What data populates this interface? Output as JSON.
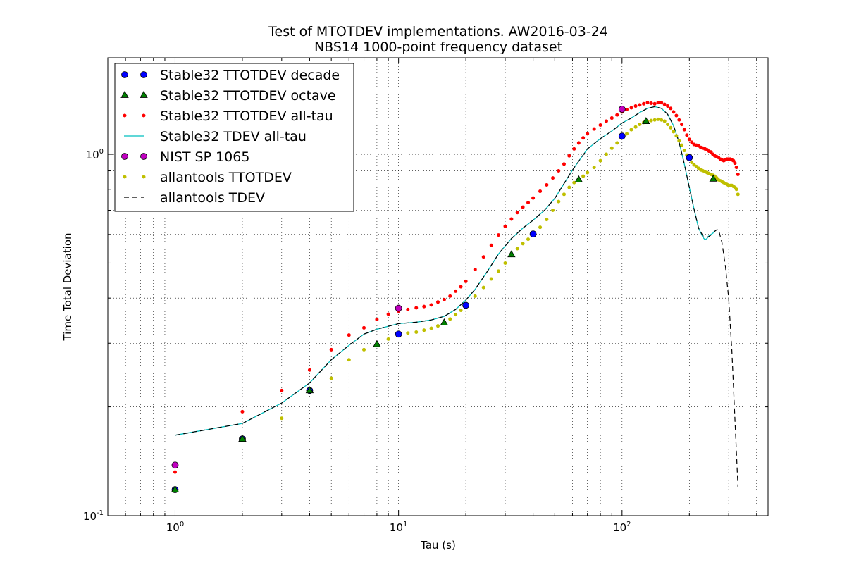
{
  "chart_data": {
    "type": "scatter",
    "title": "Test of MTOTDEV implementations. AW2016-03-24",
    "subtitle": "NBS14 1000-point frequency dataset",
    "xlabel": "Tau (s)",
    "ylabel": "Time Total Deviation",
    "xscale": "log",
    "yscale": "log",
    "xlim": [
      0.5,
      450
    ],
    "ylim": [
      0.1,
      1.85
    ],
    "grid": true,
    "legend_position": "top-left",
    "x_tick_labels": [
      {
        "value": 1,
        "base": "10",
        "exp": "0"
      },
      {
        "value": 10,
        "base": "10",
        "exp": "1"
      },
      {
        "value": 100,
        "base": "10",
        "exp": "2"
      }
    ],
    "y_tick_labels": [
      {
        "value": 0.1,
        "base": "10",
        "exp": "-1"
      },
      {
        "value": 1,
        "base": "10",
        "exp": "0"
      }
    ],
    "series": [
      {
        "name": "Stable32 TTOTDEV decade",
        "marker": "circle",
        "color": "#0000ff",
        "size": 4.5,
        "x": [
          1,
          2,
          4,
          10,
          20,
          40,
          100,
          200
        ],
        "y": [
          0.118,
          0.163,
          0.222,
          0.318,
          0.382,
          0.602,
          1.123,
          0.979
        ]
      },
      {
        "name": "Stable32 TTOTDEV octave",
        "marker": "triangle",
        "color": "#007f00",
        "size": 4.5,
        "x": [
          1,
          2,
          4,
          8,
          16,
          32,
          64,
          128,
          256
        ],
        "y": [
          0.118,
          0.163,
          0.222,
          0.298,
          0.342,
          0.528,
          0.851,
          1.234,
          0.855
        ]
      },
      {
        "name": "Stable32 TTOTDEV all-tau",
        "marker": "dot",
        "color": "#ff0000",
        "size": 2.5,
        "x": [
          1,
          2,
          3,
          4,
          5,
          6,
          7,
          8,
          9,
          10,
          11,
          12,
          13,
          14,
          15,
          16,
          17,
          18,
          19,
          20,
          22,
          24,
          26,
          28,
          30,
          32,
          34,
          36,
          38,
          40,
          43,
          46,
          49,
          52,
          55,
          58,
          61,
          64,
          67,
          70,
          75,
          80,
          85,
          90,
          95,
          100,
          105,
          110,
          115,
          120,
          125,
          130,
          135,
          140,
          145,
          150,
          155,
          160,
          165,
          170,
          175,
          180,
          185,
          190,
          195,
          200,
          205,
          210,
          215,
          220,
          225,
          230,
          235,
          240,
          245,
          250,
          255,
          260,
          265,
          270,
          275,
          280,
          285,
          290,
          295,
          300,
          305,
          310,
          315,
          320,
          325,
          330
        ],
        "y": [
          0.132,
          0.194,
          0.222,
          0.253,
          0.288,
          0.316,
          0.331,
          0.349,
          0.361,
          0.368,
          0.372,
          0.376,
          0.379,
          0.383,
          0.39,
          0.396,
          0.405,
          0.418,
          0.43,
          0.445,
          0.48,
          0.52,
          0.56,
          0.598,
          0.632,
          0.662,
          0.69,
          0.714,
          0.735,
          0.757,
          0.79,
          0.823,
          0.86,
          0.9,
          0.94,
          0.99,
          1.035,
          1.075,
          1.11,
          1.14,
          1.175,
          1.205,
          1.235,
          1.26,
          1.285,
          1.31,
          1.33,
          1.345,
          1.36,
          1.37,
          1.38,
          1.39,
          1.385,
          1.38,
          1.39,
          1.39,
          1.375,
          1.36,
          1.34,
          1.31,
          1.28,
          1.245,
          1.21,
          1.17,
          1.13,
          1.1,
          1.08,
          1.065,
          1.06,
          1.055,
          1.045,
          1.04,
          1.035,
          1.03,
          1.02,
          1.015,
          1.0,
          0.99,
          0.985,
          0.98,
          0.97,
          0.965,
          0.96,
          0.965,
          0.97,
          0.97,
          0.97,
          0.965,
          0.96,
          0.945,
          0.92,
          0.88
        ]
      },
      {
        "name": "Stable32 TDEV all-tau",
        "marker": "line",
        "color": "#00bfbf",
        "linewidth": 1.3,
        "x": [
          1,
          2,
          3,
          4,
          5,
          6,
          7,
          8,
          10,
          12,
          14,
          16,
          18,
          20,
          22,
          25,
          28,
          32,
          36,
          40,
          45,
          50,
          55,
          60,
          65,
          70,
          80,
          90,
          100,
          110,
          120,
          130,
          140,
          150,
          160,
          170,
          180,
          190,
          200,
          210,
          220,
          230,
          235,
          240,
          245,
          250,
          255,
          260
        ],
        "y": [
          0.167,
          0.18,
          0.205,
          0.233,
          0.27,
          0.296,
          0.318,
          0.328,
          0.34,
          0.343,
          0.348,
          0.356,
          0.372,
          0.395,
          0.423,
          0.475,
          0.53,
          0.585,
          0.625,
          0.657,
          0.7,
          0.755,
          0.83,
          0.905,
          0.97,
          1.035,
          1.105,
          1.16,
          1.22,
          1.26,
          1.305,
          1.34,
          1.355,
          1.34,
          1.29,
          1.2,
          1.08,
          0.94,
          0.81,
          0.705,
          0.625,
          0.59,
          0.58,
          0.585,
          0.595,
          0.6,
          0.605,
          0.615
        ]
      },
      {
        "name": "NIST SP 1065",
        "marker": "circle",
        "color": "#bf00bf",
        "size": 4.5,
        "x": [
          1,
          10,
          100
        ],
        "y": [
          0.138,
          0.375,
          1.333
        ]
      },
      {
        "name": "allantools TTOTDEV",
        "marker": "dot",
        "color": "#bfbf00",
        "size": 2.5,
        "x": [
          1,
          2,
          3,
          4,
          5,
          6,
          7,
          8,
          9,
          10,
          11,
          12,
          13,
          14,
          15,
          16,
          17,
          18,
          19,
          20,
          22,
          24,
          26,
          28,
          30,
          32,
          34,
          36,
          38,
          40,
          43,
          46,
          49,
          52,
          55,
          58,
          61,
          64,
          67,
          70,
          75,
          80,
          85,
          90,
          95,
          100,
          105,
          110,
          115,
          120,
          125,
          130,
          135,
          140,
          145,
          150,
          155,
          160,
          165,
          170,
          175,
          180,
          185,
          190,
          195,
          200,
          205,
          210,
          215,
          220,
          225,
          230,
          235,
          240,
          245,
          250,
          255,
          260,
          265,
          270,
          275,
          280,
          285,
          290,
          295,
          300,
          305,
          310,
          315,
          320,
          325,
          330
        ],
        "y": [
          0.118,
          0.163,
          0.186,
          0.22,
          0.24,
          0.27,
          0.288,
          0.298,
          0.308,
          0.318,
          0.32,
          0.322,
          0.326,
          0.33,
          0.335,
          0.341,
          0.35,
          0.36,
          0.37,
          0.382,
          0.405,
          0.428,
          0.452,
          0.475,
          0.5,
          0.525,
          0.548,
          0.566,
          0.582,
          0.6,
          0.628,
          0.66,
          0.7,
          0.74,
          0.775,
          0.81,
          0.835,
          0.855,
          0.87,
          0.89,
          0.92,
          0.96,
          1.0,
          1.04,
          1.075,
          1.11,
          1.14,
          1.17,
          1.19,
          1.21,
          1.225,
          1.235,
          1.24,
          1.245,
          1.25,
          1.245,
          1.235,
          1.21,
          1.185,
          1.155,
          1.125,
          1.09,
          1.06,
          1.025,
          0.995,
          0.97,
          0.95,
          0.935,
          0.925,
          0.915,
          0.905,
          0.9,
          0.895,
          0.89,
          0.885,
          0.88,
          0.875,
          0.87,
          0.86,
          0.85,
          0.845,
          0.84,
          0.835,
          0.83,
          0.825,
          0.82,
          0.82,
          0.82,
          0.815,
          0.81,
          0.8,
          0.775
        ]
      },
      {
        "name": "allantools TDEV",
        "marker": "dashed",
        "color": "#000000",
        "linewidth": 1.2,
        "x": [
          1,
          2,
          3,
          4,
          5,
          6,
          7,
          8,
          10,
          12,
          14,
          16,
          18,
          20,
          22,
          25,
          28,
          32,
          36,
          40,
          45,
          50,
          55,
          60,
          65,
          70,
          80,
          90,
          100,
          110,
          120,
          130,
          140,
          150,
          160,
          170,
          180,
          190,
          200,
          210,
          220,
          230,
          235,
          240,
          245,
          250,
          255,
          260,
          265,
          270,
          280,
          290,
          300,
          310,
          320,
          330
        ],
        "y": [
          0.167,
          0.18,
          0.205,
          0.233,
          0.27,
          0.296,
          0.318,
          0.328,
          0.34,
          0.343,
          0.348,
          0.356,
          0.372,
          0.395,
          0.423,
          0.475,
          0.53,
          0.585,
          0.625,
          0.657,
          0.7,
          0.755,
          0.83,
          0.905,
          0.97,
          1.035,
          1.105,
          1.16,
          1.22,
          1.26,
          1.305,
          1.34,
          1.355,
          1.34,
          1.29,
          1.2,
          1.08,
          0.94,
          0.81,
          0.705,
          0.625,
          0.595,
          0.59,
          0.59,
          0.592,
          0.598,
          0.605,
          0.612,
          0.618,
          0.62,
          0.57,
          0.49,
          0.4,
          0.285,
          0.185,
          0.12
        ]
      }
    ]
  }
}
